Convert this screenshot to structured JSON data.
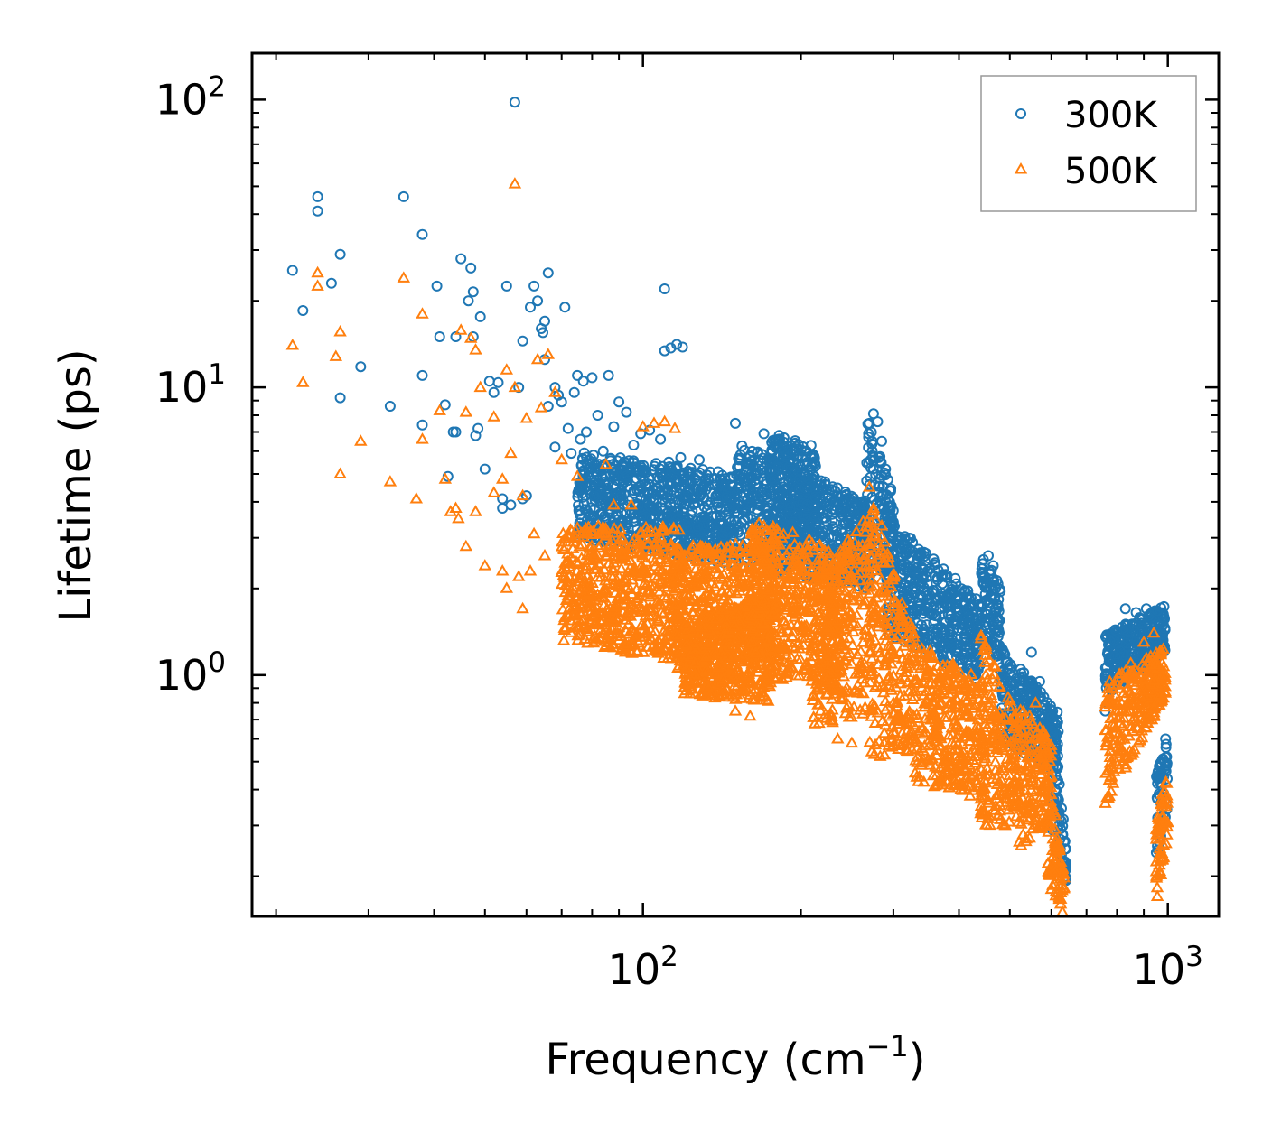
{
  "chart_data": {
    "type": "scatter",
    "xscale": "log",
    "yscale": "log",
    "xlim": [
      18,
      1250
    ],
    "ylim": [
      0.145,
      145
    ],
    "xlabel": {
      "text": "Frequency (cm",
      "sup": "−1",
      "suffix": ")"
    },
    "ylabel": "Lifetime (ps)",
    "x_ticks": [
      {
        "base": "10",
        "exp": "2",
        "value": 100
      },
      {
        "base": "10",
        "exp": "3",
        "value": 1000
      }
    ],
    "y_ticks": [
      {
        "base": "10",
        "exp": "0",
        "value": 1
      },
      {
        "base": "10",
        "exp": "1",
        "value": 10
      },
      {
        "base": "10",
        "exp": "2",
        "value": 100
      }
    ],
    "legend": {
      "position": "top-right"
    },
    "series": [
      {
        "name": "300K",
        "marker": "circle",
        "color": "#1f77b4",
        "points": [
          [
            21.5,
            25.5
          ],
          [
            22.5,
            18.5
          ],
          [
            24,
            46
          ],
          [
            24,
            41
          ],
          [
            25.5,
            23
          ],
          [
            26.5,
            9.2
          ],
          [
            26.5,
            29
          ],
          [
            29,
            11.8
          ],
          [
            33,
            8.6
          ],
          [
            35,
            46
          ],
          [
            38,
            34
          ],
          [
            38,
            11
          ],
          [
            38,
            7.4
          ],
          [
            40.5,
            22.5
          ],
          [
            41,
            15
          ],
          [
            42,
            8.7
          ],
          [
            42.5,
            4.9
          ],
          [
            43.5,
            7
          ],
          [
            44,
            7
          ],
          [
            44,
            15
          ],
          [
            45,
            28
          ],
          [
            46.5,
            20
          ],
          [
            47,
            26
          ],
          [
            47.5,
            21.5
          ],
          [
            47.5,
            15
          ],
          [
            48,
            6.8
          ],
          [
            48.5,
            7.2
          ],
          [
            49,
            17.6
          ],
          [
            50,
            5.2
          ],
          [
            51,
            10.5
          ],
          [
            52,
            9.6
          ],
          [
            53,
            10.4
          ],
          [
            54,
            3.8
          ],
          [
            54,
            4.1
          ],
          [
            55,
            22.5
          ],
          [
            56,
            3.9
          ],
          [
            57,
            98
          ],
          [
            58,
            10
          ],
          [
            59,
            14.5
          ],
          [
            59,
            4.1
          ],
          [
            60,
            4.2
          ],
          [
            61,
            19
          ],
          [
            62,
            22.5
          ],
          [
            63,
            20
          ],
          [
            64,
            16
          ],
          [
            64.5,
            15.5
          ],
          [
            65,
            17
          ],
          [
            65,
            12.5
          ],
          [
            66,
            25
          ],
          [
            68,
            10
          ],
          [
            71,
            19
          ],
          [
            66,
            8.6
          ],
          [
            68,
            6.2
          ],
          [
            69,
            9.4
          ],
          [
            70,
            8.9
          ],
          [
            72,
            7.2
          ],
          [
            73,
            5.9
          ],
          [
            74,
            9.6
          ],
          [
            75,
            11
          ],
          [
            76,
            6.6
          ],
          [
            77,
            10.5
          ],
          [
            78,
            7
          ],
          [
            80,
            10.8
          ],
          [
            82,
            8
          ],
          [
            84,
            6
          ],
          [
            86,
            11
          ],
          [
            88,
            7.3
          ],
          [
            90,
            8.9
          ],
          [
            93,
            8.2
          ],
          [
            96,
            6.3
          ],
          [
            99,
            6.9
          ],
          [
            103,
            7.1
          ],
          [
            108,
            6.6
          ],
          [
            110,
            22
          ],
          [
            110,
            13.4
          ],
          [
            113,
            13.7
          ],
          [
            116,
            14.1
          ],
          [
            119,
            13.8
          ],
          [
            112,
            5.5
          ],
          [
            118,
            5.7
          ],
          [
            122,
            5.1
          ],
          [
            128,
            5.6
          ],
          [
            140,
            4.8
          ],
          [
            150,
            7.5
          ],
          [
            160,
            5.8
          ],
          [
            170,
            6.9
          ],
          [
            178,
            6.2
          ],
          [
            185,
            5.7
          ],
          [
            195,
            6.4
          ],
          [
            200,
            4.9
          ],
          [
            205,
            6
          ],
          [
            210,
            5.4
          ],
          [
            215,
            4.2
          ],
          [
            222,
            4.6
          ],
          [
            240,
            3.6
          ],
          [
            255,
            3.2
          ],
          [
            270,
            7.5
          ],
          [
            275,
            8.1
          ],
          [
            280,
            7.6
          ],
          [
            285,
            6.5
          ],
          [
            290,
            5.2
          ],
          [
            300,
            3.4
          ],
          [
            320,
            2.3
          ],
          [
            340,
            2.1
          ],
          [
            360,
            2.2
          ],
          [
            380,
            1.9
          ],
          [
            400,
            1.6
          ],
          [
            420,
            1.3
          ],
          [
            440,
            1.4
          ],
          [
            455,
            2.6
          ],
          [
            465,
            2.4
          ],
          [
            470,
            2
          ],
          [
            480,
            1.2
          ],
          [
            500,
            1.05
          ],
          [
            520,
            0.9
          ],
          [
            550,
            1.2
          ],
          [
            570,
            0.95
          ],
          [
            590,
            0.7
          ],
          [
            610,
            0.4
          ],
          [
            630,
            0.28
          ],
          [
            760,
            0.75
          ],
          [
            790,
            1.4
          ],
          [
            830,
            1.7
          ],
          [
            870,
            1.65
          ],
          [
            910,
            1.7
          ],
          [
            945,
            1.6
          ],
          [
            960,
            0.28
          ],
          [
            975,
            0.45
          ],
          [
            990,
            0.6
          ],
          [
            995,
            0.52
          ]
        ],
        "bands": [
          {
            "x": [
              75,
              150
            ],
            "ylo": [
              3,
              2.4
            ],
            "yhi": [
              6,
              5
            ]
          },
          {
            "x": [
              150,
              270
            ],
            "ylo": [
              2.4,
              2
            ],
            "yhi": [
              6.5,
              4
            ]
          },
          {
            "x": [
              175,
              215
            ],
            "ylo": [
              2.7,
              2.5
            ],
            "yhi": [
              7,
              6.2
            ]
          },
          {
            "x": [
              265,
              300
            ],
            "ylo": [
              2.3,
              2.2
            ],
            "yhi": [
              8.2,
              4.2
            ]
          },
          {
            "x": [
              290,
              440
            ],
            "ylo": [
              1.4,
              0.95
            ],
            "yhi": [
              3.6,
              1.8
            ]
          },
          {
            "x": [
              440,
              480
            ],
            "ylo": [
              1.3,
              1.1
            ],
            "yhi": [
              2.6,
              2.1
            ]
          },
          {
            "x": [
              480,
              620
            ],
            "ylo": [
              0.6,
              0.45
            ],
            "yhi": [
              1.25,
              0.75
            ]
          },
          {
            "x": [
              600,
              640
            ],
            "ylo": [
              0.3,
              0.19
            ],
            "yhi": [
              0.75,
              0.26
            ]
          },
          {
            "x": [
              760,
              990
            ],
            "ylo": [
              0.85,
              1.2
            ],
            "yhi": [
              1.4,
              1.75
            ]
          },
          {
            "x": [
              950,
              1000
            ],
            "ylo": [
              0.22,
              0.35
            ],
            "yhi": [
              0.45,
              0.6
            ]
          }
        ]
      },
      {
        "name": "500K",
        "marker": "triangle",
        "color": "#ff7f0e",
        "points": [
          [
            21.5,
            14
          ],
          [
            22.5,
            10.4
          ],
          [
            24,
            25
          ],
          [
            24,
            22.5
          ],
          [
            26,
            12.8
          ],
          [
            26.5,
            15.6
          ],
          [
            26.5,
            5
          ],
          [
            29,
            6.5
          ],
          [
            33,
            4.7
          ],
          [
            35,
            24
          ],
          [
            37,
            4.1
          ],
          [
            38,
            18
          ],
          [
            38,
            6.6
          ],
          [
            41,
            8.3
          ],
          [
            42,
            4.8
          ],
          [
            43,
            3.7
          ],
          [
            44,
            3.8
          ],
          [
            44.5,
            3.5
          ],
          [
            45,
            15.8
          ],
          [
            46,
            8.2
          ],
          [
            46,
            2.8
          ],
          [
            47,
            14.8
          ],
          [
            48,
            13.5
          ],
          [
            48,
            3.7
          ],
          [
            49,
            10
          ],
          [
            50,
            2.4
          ],
          [
            52,
            7.9
          ],
          [
            52,
            4.3
          ],
          [
            54,
            2.3
          ],
          [
            54,
            4.8
          ],
          [
            55,
            11.5
          ],
          [
            55,
            2
          ],
          [
            56,
            5.9
          ],
          [
            57,
            51
          ],
          [
            57,
            10
          ],
          [
            58,
            2.2
          ],
          [
            59,
            4.2
          ],
          [
            59,
            1.7
          ],
          [
            60,
            7.8
          ],
          [
            61,
            2.3
          ],
          [
            62,
            3.1
          ],
          [
            63,
            12.5
          ],
          [
            64,
            8.5
          ],
          [
            65,
            2.6
          ],
          [
            66,
            13
          ],
          [
            68,
            9.6
          ],
          [
            70,
            5.6
          ],
          [
            72,
            1.6
          ],
          [
            75,
            4.9
          ],
          [
            78,
            3.1
          ],
          [
            80,
            2.7
          ],
          [
            82,
            1.9
          ],
          [
            85,
            5.4
          ],
          [
            88,
            3.9
          ],
          [
            90,
            2.2
          ],
          [
            95,
            3.9
          ],
          [
            100,
            7.3
          ],
          [
            105,
            7.5
          ],
          [
            110,
            7.6
          ],
          [
            115,
            7.2
          ],
          [
            120,
            1.05
          ],
          [
            130,
            1.2
          ],
          [
            140,
            0.85
          ],
          [
            150,
            0.75
          ],
          [
            160,
            0.72
          ],
          [
            175,
            1.6
          ],
          [
            185,
            2.5
          ],
          [
            195,
            1.9
          ],
          [
            205,
            1.1
          ],
          [
            220,
            0.9
          ],
          [
            235,
            0.6
          ],
          [
            250,
            0.58
          ],
          [
            260,
            1.1
          ],
          [
            270,
            4.5
          ],
          [
            275,
            3.8
          ],
          [
            285,
            3.3
          ],
          [
            290,
            1.5
          ],
          [
            300,
            0.8
          ],
          [
            320,
            0.6
          ],
          [
            340,
            0.65
          ],
          [
            360,
            0.62
          ],
          [
            380,
            0.5
          ],
          [
            400,
            0.55
          ],
          [
            420,
            0.38
          ],
          [
            440,
            0.33
          ],
          [
            450,
            1
          ],
          [
            460,
            0.8
          ],
          [
            470,
            0.35
          ],
          [
            490,
            0.3
          ],
          [
            510,
            0.35
          ],
          [
            540,
            0.33
          ],
          [
            560,
            0.8
          ],
          [
            580,
            0.4
          ],
          [
            600,
            0.18
          ],
          [
            615,
            0.21
          ],
          [
            625,
            0.16
          ],
          [
            630,
            0.15
          ],
          [
            780,
            0.5
          ],
          [
            810,
            0.6
          ],
          [
            850,
            1.1
          ],
          [
            900,
            1.3
          ],
          [
            940,
            1.4
          ],
          [
            955,
            0.17
          ],
          [
            980,
            0.3
          ],
          [
            995,
            0.42
          ]
        ],
        "bands": [
          {
            "x": [
              70,
              120
            ],
            "ylo": [
              1.3,
              1.1
            ],
            "yhi": [
              3.3,
              3.3
            ]
          },
          {
            "x": [
              115,
              180
            ],
            "ylo": [
              1.05,
              0.9
            ],
            "yhi": [
              2.8,
              2.9
            ]
          },
          {
            "x": [
              120,
              175
            ],
            "ylo": [
              0.85,
              0.8
            ],
            "yhi": [
              1.5,
              2
            ]
          },
          {
            "x": [
              160,
              240
            ],
            "ylo": [
              1,
              0.9
            ],
            "yhi": [
              3.5,
              2.8
            ]
          },
          {
            "x": [
              210,
              275
            ],
            "ylo": [
              0.65,
              0.75
            ],
            "yhi": [
              2.2,
              3.8
            ]
          },
          {
            "x": [
              270,
              330
            ],
            "ylo": [
              0.5,
              0.55
            ],
            "yhi": [
              4.3,
              1.4
            ]
          },
          {
            "x": [
              330,
              450
            ],
            "ylo": [
              0.42,
              0.38
            ],
            "yhi": [
              1.3,
              0.95
            ]
          },
          {
            "x": [
              440,
              520
            ],
            "ylo": [
              0.3,
              0.3
            ],
            "yhi": [
              1.4,
              0.7
            ]
          },
          {
            "x": [
              520,
              600
            ],
            "ylo": [
              0.25,
              0.3
            ],
            "yhi": [
              0.8,
              0.6
            ]
          },
          {
            "x": [
              590,
              635
            ],
            "ylo": [
              0.18,
              0.16
            ],
            "yhi": [
              0.5,
              0.2
            ]
          },
          {
            "x": [
              760,
              990
            ],
            "ylo": [
              0.35,
              0.85
            ],
            "yhi": [
              0.95,
              1.25
            ]
          },
          {
            "x": [
              950,
              1000
            ],
            "ylo": [
              0.17,
              0.25
            ],
            "yhi": [
              0.3,
              0.48
            ]
          }
        ]
      }
    ]
  }
}
